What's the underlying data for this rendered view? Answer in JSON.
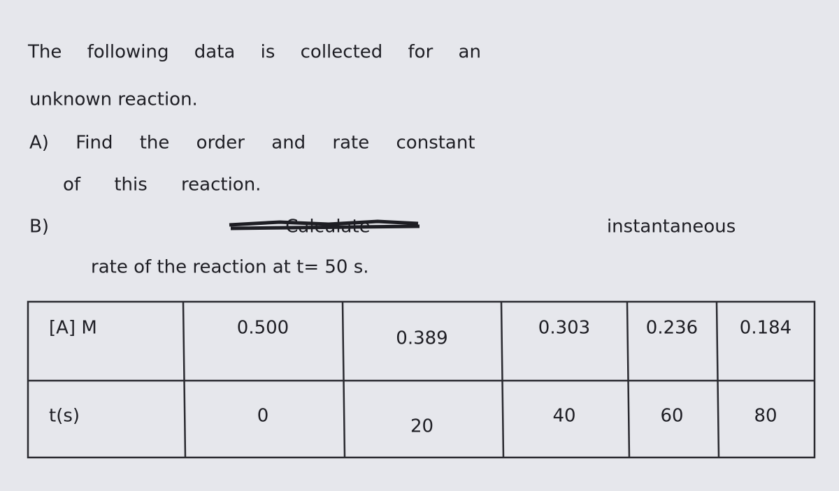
{
  "lines": [
    "The following data is collected for an",
    "unknown reaction.",
    "A) Find the order and rate constant",
    "of this reaction.",
    "B) Calculate instantaneous",
    "rate of the reaction at t= 50 s."
  ],
  "table": {
    "rows": [
      [
        "[A] M",
        "0.500",
        "0.389",
        "0.303",
        "0.236",
        "0.184"
      ],
      [
        "t(s)",
        "0",
        "20",
        "40",
        "60",
        "80"
      ]
    ]
  }
}
